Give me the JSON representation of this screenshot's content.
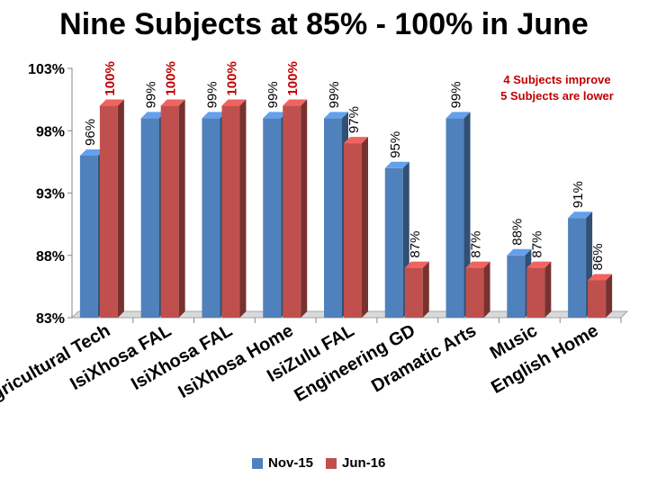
{
  "chart_data": {
    "type": "bar",
    "title": "Nine Subjects at 85% - 100% in June",
    "annotation": [
      "4 Subjects improve",
      "5 Subjects are lower"
    ],
    "categories": [
      "Agricultural Tech",
      "IsiXhosa FAL",
      "IsiXhosa FAL",
      "IsiXhosa Home",
      "IsiZulu FAL",
      "Engineering GD",
      "Dramatic Arts",
      "Music",
      "English Home"
    ],
    "series": [
      {
        "name": "Nov-15",
        "color": "#4f81bd",
        "values": [
          96,
          99,
          99,
          99,
          99,
          95,
          99,
          88,
          91
        ],
        "labels": [
          "96%",
          "99%",
          "99%",
          "99%",
          "99%",
          "95%",
          "99%",
          "88%",
          "91%"
        ]
      },
      {
        "name": "Jun-16",
        "color": "#c0504d",
        "values": [
          100,
          100,
          100,
          100,
          97,
          87,
          87,
          87,
          86
        ],
        "labels": [
          "100%",
          "100%",
          "100%",
          "100%",
          "97%",
          "87%",
          "87%",
          "87%",
          "86%"
        ]
      }
    ],
    "ylim": [
      83,
      103
    ],
    "yticks": [
      83,
      88,
      93,
      98,
      103
    ],
    "ytick_labels": [
      "83%",
      "88%",
      "93%",
      "98%",
      "103%"
    ],
    "grid": false,
    "legend_position": "bottom"
  }
}
